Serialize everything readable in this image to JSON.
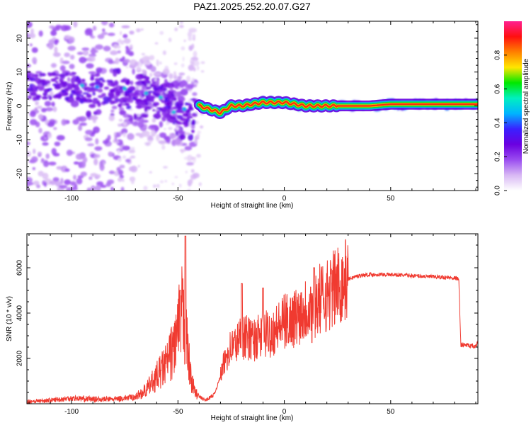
{
  "figure_title": "PAZ1.2025.252.20.07.G27",
  "colors": {
    "snr_line": "#f03a30",
    "axis": "#000000",
    "colormap": [
      "#ffffff",
      "#d8b8f4",
      "#9a4cf0",
      "#6a00e0",
      "#3a20ff",
      "#00b4ff",
      "#00f0c0",
      "#00e800",
      "#ffe600",
      "#ff8000",
      "#ff1010",
      "#ff2090"
    ]
  },
  "chart_data": [
    {
      "type": "heatmap",
      "xlabel": "Height of straight line (km)",
      "ylabel": "Frequency (Hz)",
      "xlim": [
        -121,
        91
      ],
      "ylim": [
        -25,
        25
      ],
      "xticks": [
        -100,
        -50,
        0,
        50
      ],
      "xtick_labels": [
        "-100",
        "-50",
        "0",
        "50"
      ],
      "yticks": [
        -20,
        -10,
        0,
        10,
        20
      ],
      "ytick_labels": [
        "-20",
        "-10",
        "0",
        "10",
        "20"
      ],
      "description_points": {
        "ridge_height_km": [
          -121,
          -100,
          -90,
          -80,
          -70,
          -60,
          -55,
          -50,
          -45,
          -40,
          -35,
          -30,
          -25,
          -20,
          -10,
          0,
          10,
          20,
          30,
          40,
          50,
          60,
          70,
          80,
          91
        ],
        "ridge_frequency_hz": [
          6,
          6,
          4,
          4,
          3,
          2,
          0,
          -2,
          -3,
          0,
          -1,
          -2,
          0,
          0,
          1,
          1,
          0,
          0,
          0,
          0,
          0.5,
          0.5,
          0.5,
          0.5,
          0.5
        ]
      },
      "colorbar": {
        "label": "Normalized spectral amplitude",
        "range": [
          0,
          1
        ],
        "ticks": [
          0.0,
          0.2,
          0.4,
          0.6,
          0.8
        ],
        "tick_labels": [
          "0.0",
          "0.2",
          "0.4",
          "0.6",
          "0.8"
        ]
      }
    },
    {
      "type": "line",
      "xlabel": "Height of straight line (km)",
      "ylabel": "SNR (10 * v/v)",
      "xlim": [
        -121,
        91
      ],
      "ylim": [
        0,
        7500
      ],
      "xticks": [
        -100,
        -50,
        0,
        50
      ],
      "xtick_labels": [
        "-100",
        "-50",
        "0",
        "50"
      ],
      "yticks": [
        2000,
        4000,
        6000
      ],
      "ytick_labels": [
        "2000",
        "4000",
        "6000"
      ],
      "series": [
        {
          "name": "SNR",
          "x": [
            -121,
            -110,
            -100,
            -90,
            -80,
            -70,
            -65,
            -60,
            -55,
            -52,
            -50,
            -48,
            -46,
            -44,
            -42,
            -40,
            -37,
            -33,
            -30,
            -27,
            -25,
            -22,
            -20,
            -15,
            -10,
            -5,
            0,
            5,
            10,
            15,
            20,
            25,
            30,
            35,
            40,
            50,
            60,
            70,
            80,
            82,
            83,
            85,
            90,
            91
          ],
          "y": [
            100,
            150,
            250,
            200,
            200,
            300,
            600,
            1200,
            1800,
            2500,
            3200,
            4000,
            2800,
            1200,
            500,
            300,
            150,
            400,
            1200,
            2200,
            2500,
            2700,
            3000,
            2800,
            3000,
            3200,
            3600,
            3800,
            4200,
            4500,
            4800,
            5200,
            5500,
            5650,
            5700,
            5700,
            5650,
            5600,
            5550,
            5500,
            2600,
            2600,
            2500,
            2800
          ]
        }
      ]
    }
  ]
}
